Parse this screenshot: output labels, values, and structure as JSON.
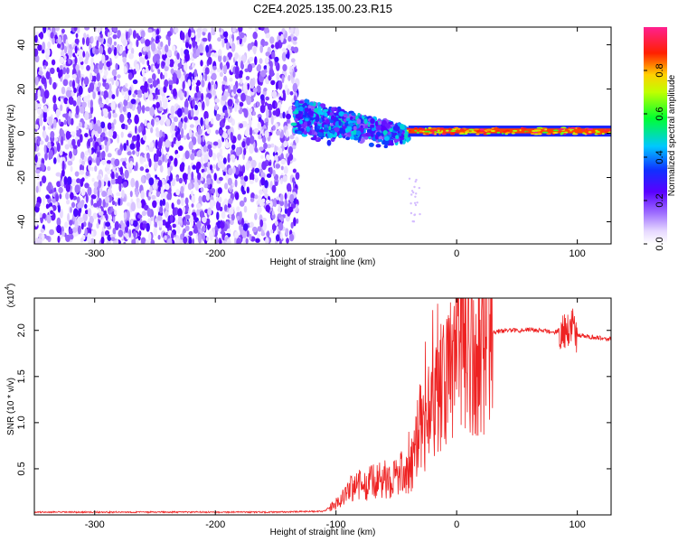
{
  "title": "C2E4.2025.135.00.23.R15",
  "colors": {
    "line": "#ee2222",
    "axis": "#000000"
  },
  "chart_data": [
    {
      "type": "heatmap",
      "title": "C2E4.2025.135.00.23.R15",
      "xlabel": "Height of straight line (km)",
      "ylabel": "Frequency (Hz)",
      "xlim": [
        -350,
        128
      ],
      "ylim": [
        -50,
        48
      ],
      "xticks": [
        "-300",
        "-200",
        "-100",
        "0",
        "100"
      ],
      "yticks": [
        "40",
        "20",
        "0",
        "-20",
        "-40"
      ],
      "colorbar": {
        "label": "Normalized spectral amplitude",
        "range": [
          0,
          1
        ],
        "ticks": [
          "0.0",
          "0.2",
          "0.4",
          "0.6",
          "0.8"
        ],
        "colormap": "rainbow (white-purple-blue-cyan-green-yellow-red-magenta)"
      },
      "regions": [
        {
          "x_range": [
            -350,
            -135
          ],
          "freq_range": [
            -50,
            48
          ],
          "amplitude": "0.0-0.25, broadband noise"
        },
        {
          "x_range": [
            -135,
            -40
          ],
          "freq_center_start": 8,
          "freq_center_end": 0,
          "amplitude": "0.15-0.5"
        },
        {
          "x_range": [
            -40,
            128
          ],
          "freq_center": 1,
          "amplitude": "0.7-1.0, narrowband carrier line"
        }
      ]
    },
    {
      "type": "line",
      "xlabel": "Height of straight line (km)",
      "ylabel": "SNR (10 * v/v)",
      "y_exponent_label": "(x10",
      "y_exponent": "4",
      "xlim": [
        -350,
        128
      ],
      "ylim": [
        0,
        23500
      ],
      "xticks": [
        "-300",
        "-200",
        "-100",
        "0",
        "100"
      ],
      "yticks": [
        "0.5",
        "1.0",
        "1.5",
        "2.0"
      ],
      "series": [
        {
          "x": [
            -350,
            -250,
            -150,
            -110,
            -100,
            -90,
            -80,
            -70,
            -60,
            -50,
            -40,
            -35,
            -30,
            -25,
            -20,
            -15,
            -10,
            -5,
            0,
            5,
            10,
            20,
            30,
            40,
            50,
            60,
            70,
            80,
            90,
            95,
            100,
            110,
            120,
            128
          ],
          "y": [
            300,
            300,
            300,
            400,
            1200,
            2500,
            3200,
            3500,
            3800,
            4200,
            4800,
            6500,
            8500,
            10500,
            12500,
            13500,
            14000,
            15000,
            16000,
            17000,
            18000,
            19000,
            19800,
            20000,
            20000,
            20100,
            20000,
            19800,
            20200,
            20500,
            19500,
            19300,
            19200,
            19000
          ]
        }
      ]
    }
  ]
}
